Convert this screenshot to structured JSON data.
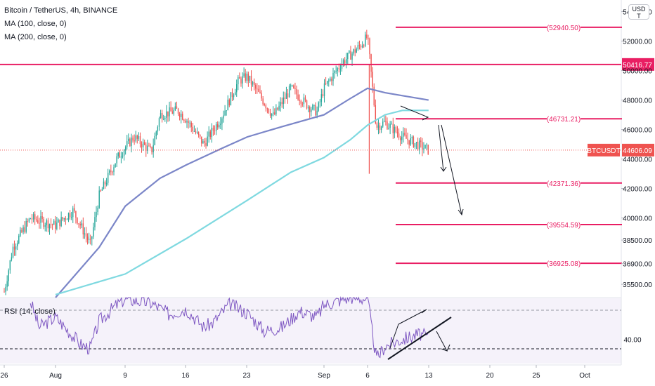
{
  "header": {
    "title": "Bitcoin / TetherUS, 4h, BINANCE",
    "ma100_label": "MA (100, close, 0)",
    "ma200_label": "MA (200, close, 0)",
    "rsi_label": "RSI (14, close)",
    "currency_top": "USD",
    "currency_bottom": "T"
  },
  "colors": {
    "up": "#26a69a",
    "down": "#ef5350",
    "level": "#e91e63",
    "ma100": "#7b86c8",
    "ma200": "#7fd9e0",
    "rsi": "#7e57c2",
    "rsi_band": "#ede7f6",
    "arrow": "#131722"
  },
  "price_scale": {
    "ticks": [
      "54000.00",
      "52000.00",
      "50000.00",
      "48000.00",
      "46000.00",
      "44000.00",
      "42000.00",
      "40000.00",
      "38500.00",
      "36900.00",
      "35500.00"
    ],
    "current_symbol": "BTCUSDT",
    "current_price": "44606.09",
    "tagged_level": "50416.77",
    "rsi_tick": "40.00"
  },
  "time_axis": {
    "ticks": [
      "26",
      "Aug",
      "9",
      "16",
      "23",
      "Sep",
      "6",
      "13",
      "20",
      "25",
      "Oct"
    ]
  },
  "chart_data": {
    "type": "candlestick",
    "title": "Bitcoin / TetherUS, 4h, BINANCE",
    "timeframe": "4h",
    "x_range": [
      "26",
      "Oct"
    ],
    "ylim": [
      34600,
      54600
    ],
    "grid": false,
    "last_price": 44606.09,
    "horizontal_levels": [
      {
        "label": "(52940.50)",
        "value": 52940.5
      },
      {
        "label": "50416.77",
        "value": 50416.77
      },
      {
        "label": "(46731.21)",
        "value": 46731.21
      },
      {
        "label": "(42371.36)",
        "value": 42371.36
      },
      {
        "label": "(39554.59)",
        "value": 39554.59
      },
      {
        "label": "(36925.08)",
        "value": 36925.08
      }
    ],
    "close_path": [
      {
        "x": "26",
        "y": 35000
      },
      {
        "x": "27",
        "y": 38000
      },
      {
        "x": "29",
        "y": 40000
      },
      {
        "x": "Aug",
        "y": 39500
      },
      {
        "x": "3",
        "y": 40500
      },
      {
        "x": "5",
        "y": 38200
      },
      {
        "x": "6",
        "y": 41500
      },
      {
        "x": "8",
        "y": 44000
      },
      {
        "x": "9",
        "y": 44800
      },
      {
        "x": "10",
        "y": 45500
      },
      {
        "x": "12",
        "y": 44500
      },
      {
        "x": "13",
        "y": 47000
      },
      {
        "x": "15",
        "y": 47300
      },
      {
        "x": "16",
        "y": 46700
      },
      {
        "x": "18",
        "y": 45000
      },
      {
        "x": "20",
        "y": 46800
      },
      {
        "x": "22",
        "y": 49300
      },
      {
        "x": "23",
        "y": 49600
      },
      {
        "x": "24",
        "y": 48700
      },
      {
        "x": "26",
        "y": 46900
      },
      {
        "x": "28",
        "y": 48800
      },
      {
        "x": "30",
        "y": 47600
      },
      {
        "x": "31",
        "y": 47200
      },
      {
        "x": "Sep",
        "y": 48800
      },
      {
        "x": "3",
        "y": 50500
      },
      {
        "x": "5",
        "y": 51600
      },
      {
        "x": "6",
        "y": 52300
      },
      {
        "x": "7",
        "y": 46200
      },
      {
        "x": "8",
        "y": 46500
      },
      {
        "x": "10",
        "y": 45500
      },
      {
        "x": "13",
        "y": 44606.09
      }
    ],
    "series": [
      {
        "name": "MA (100, close, 0)",
        "values": [
          {
            "x": "Aug",
            "y": 34600
          },
          {
            "x": "6",
            "y": 38000
          },
          {
            "x": "9",
            "y": 40800
          },
          {
            "x": "13",
            "y": 42700
          },
          {
            "x": "16",
            "y": 43600
          },
          {
            "x": "20",
            "y": 44700
          },
          {
            "x": "23",
            "y": 45500
          },
          {
            "x": "27",
            "y": 46200
          },
          {
            "x": "Sep",
            "y": 47000
          },
          {
            "x": "4",
            "y": 48100
          },
          {
            "x": "6",
            "y": 48800
          },
          {
            "x": "8",
            "y": 48500
          },
          {
            "x": "10",
            "y": 48300
          },
          {
            "x": "13",
            "y": 48000
          }
        ]
      },
      {
        "name": "MA (200, close, 0)",
        "values": [
          {
            "x": "Aug",
            "y": 34800
          },
          {
            "x": "9",
            "y": 36200
          },
          {
            "x": "16",
            "y": 38600
          },
          {
            "x": "23",
            "y": 41200
          },
          {
            "x": "28",
            "y": 43100
          },
          {
            "x": "Sep",
            "y": 44100
          },
          {
            "x": "4",
            "y": 45300
          },
          {
            "x": "6",
            "y": 46300
          },
          {
            "x": "8",
            "y": 47000
          },
          {
            "x": "10",
            "y": 47300
          },
          {
            "x": "13",
            "y": 47300
          }
        ]
      }
    ],
    "rsi": {
      "label": "RSI (14, close)",
      "tick": 40,
      "values": [
        {
          "x": "29",
          "y": 78
        },
        {
          "x": "30",
          "y": 52
        },
        {
          "x": "Aug",
          "y": 62
        },
        {
          "x": "4",
          "y": 34
        },
        {
          "x": "5",
          "y": 31
        },
        {
          "x": "6",
          "y": 58
        },
        {
          "x": "8",
          "y": 74
        },
        {
          "x": "9",
          "y": 80
        },
        {
          "x": "12",
          "y": 76
        },
        {
          "x": "14",
          "y": 65
        },
        {
          "x": "16",
          "y": 70
        },
        {
          "x": "18",
          "y": 52
        },
        {
          "x": "19",
          "y": 56
        },
        {
          "x": "21",
          "y": 75
        },
        {
          "x": "23",
          "y": 66
        },
        {
          "x": "25",
          "y": 48
        },
        {
          "x": "27",
          "y": 52
        },
        {
          "x": "29",
          "y": 68
        },
        {
          "x": "31",
          "y": 62
        },
        {
          "x": "Sep",
          "y": 74
        },
        {
          "x": "4",
          "y": 82
        },
        {
          "x": "6",
          "y": 80
        },
        {
          "x": "7",
          "y": 20
        },
        {
          "x": "8",
          "y": 33
        },
        {
          "x": "10",
          "y": 40
        },
        {
          "x": "12",
          "y": 45
        },
        {
          "x": "13",
          "y": 42
        }
      ]
    }
  }
}
